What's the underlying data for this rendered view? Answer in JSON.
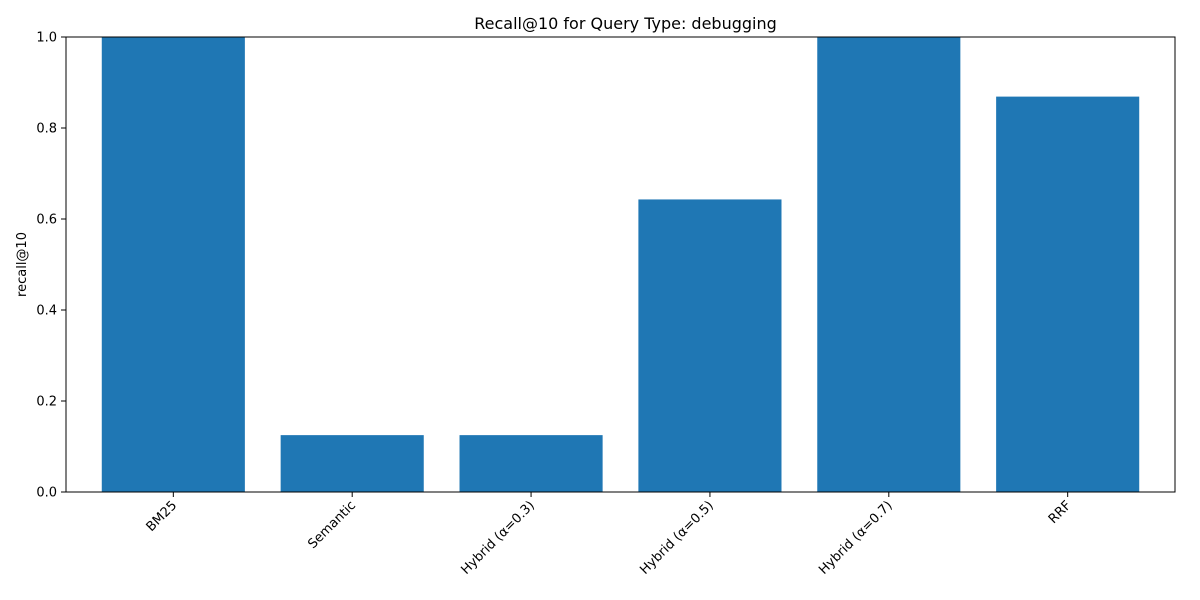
{
  "chart_data": {
    "type": "bar",
    "title": "Recall@10 for Query Type: debugging",
    "xlabel": "",
    "ylabel": "recall@10",
    "categories": [
      "BM25",
      "Semantic",
      "Hybrid (α=0.3)",
      "Hybrid (α=0.5)",
      "Hybrid (α=0.7)",
      "RRF"
    ],
    "values": [
      1.0,
      0.125,
      0.125,
      0.643,
      1.0,
      0.869
    ],
    "ylim": [
      0,
      1.0
    ],
    "yticks": [
      0.0,
      0.2,
      0.4,
      0.6,
      0.8,
      1.0
    ],
    "ytick_labels": [
      "0.0",
      "0.2",
      "0.4",
      "0.6",
      "0.8",
      "1.0"
    ],
    "grid": false,
    "bar_color": "#1f77b4",
    "xtick_rotation": "45 degrees"
  }
}
